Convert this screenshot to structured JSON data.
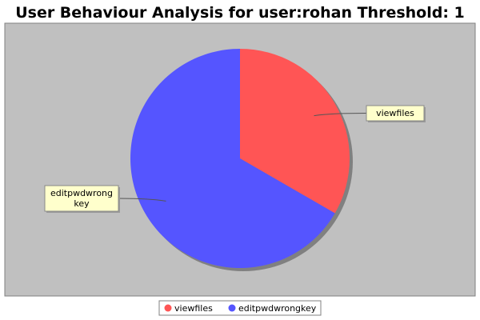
{
  "chart_data": {
    "type": "pie",
    "title": "User Behaviour Analysis for user:rohan Threshold: 1",
    "slices": [
      {
        "label": "viewfiles",
        "value": 1,
        "color": "#ff5555",
        "callout_lines": [
          "viewfiles"
        ]
      },
      {
        "label": "editpwdwrongkey",
        "value": 2,
        "color": "#5555ff",
        "callout_lines": [
          "editpwdwrong",
          "key"
        ]
      }
    ],
    "legend": {
      "placement": "bottom",
      "entries": [
        "viewfiles",
        "editpwdwrongkey"
      ]
    },
    "plot_background": "#c0c0c0",
    "callout_background": "#ffffcc"
  }
}
